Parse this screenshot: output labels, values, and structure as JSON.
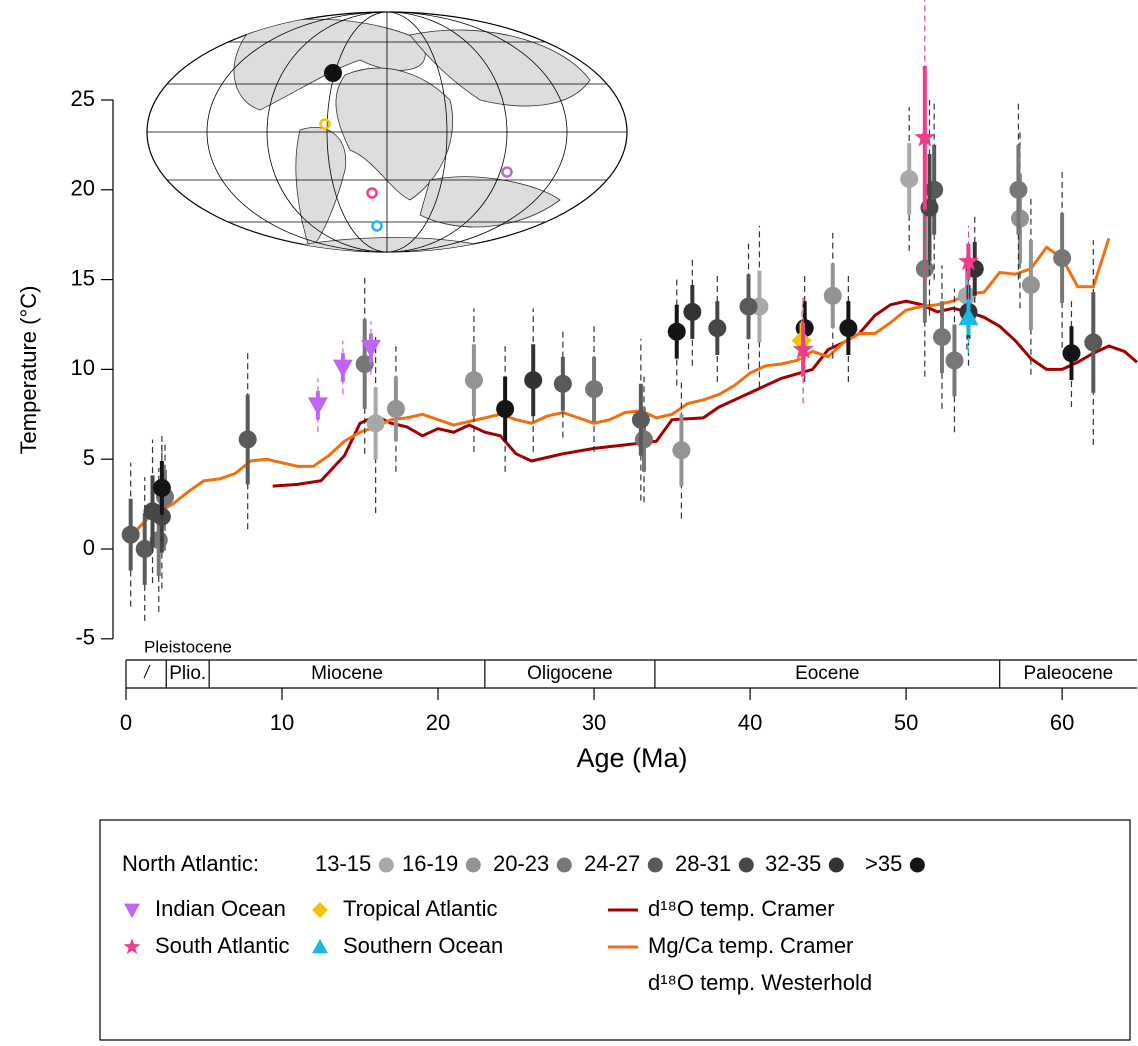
{
  "chart_data": {
    "type": "scatter",
    "xlabel": "Age (Ma)",
    "ylabel": "Temperature (°C)",
    "xlim": [
      0,
      64.8
    ],
    "ylim": [
      -5,
      30.5
    ],
    "xticks": [
      0,
      10,
      20,
      30,
      40,
      50,
      60
    ],
    "yticks": [
      -5,
      0,
      5,
      10,
      15,
      20,
      25
    ],
    "legend_prefix": "North Atlantic:",
    "epochs": [
      {
        "name": "Pleistocene",
        "start": 0,
        "end": 2.58,
        "label_above": true
      },
      {
        "name": "Plio.",
        "start": 2.58,
        "end": 5.33
      },
      {
        "name": "Miocene",
        "start": 5.33,
        "end": 23
      },
      {
        "name": "Oligocene",
        "start": 23,
        "end": 33.9
      },
      {
        "name": "Eocene",
        "start": 33.9,
        "end": 56
      },
      {
        "name": "Paleocene",
        "start": 56,
        "end": 66
      }
    ],
    "series": [
      {
        "name": "13-15",
        "group": "na",
        "color": "#a8a8a8",
        "marker": "circle",
        "x": [
          16.0,
          40.6,
          50.2,
          53.9
        ],
        "values": [
          7.0,
          13.5,
          20.6,
          14.1
        ],
        "errors": [
          2,
          2,
          2,
          1.5
        ],
        "errors_2sigma": [
          5,
          4.5,
          4,
          3
        ]
      },
      {
        "name": "16-19",
        "group": "na",
        "color": "#939393",
        "marker": "circle",
        "x": [
          17.3,
          22.3,
          35.6,
          45.3,
          57.3,
          58.0
        ],
        "values": [
          7.8,
          9.4,
          5.5,
          14.1,
          18.4,
          14.7
        ],
        "errors": [
          1.8,
          2,
          2,
          1.8,
          2.5,
          2.5
        ],
        "errors_2sigma": [
          3.5,
          4,
          3.8,
          3.5,
          5,
          5
        ]
      },
      {
        "name": "20-23",
        "group": "na",
        "color": "#777777",
        "marker": "circle",
        "x": [
          2.1,
          2.5,
          15.3,
          30.0,
          33.2,
          51.2,
          52.3,
          53.1,
          57.2,
          60.0
        ],
        "values": [
          0.5,
          2.9,
          10.3,
          8.9,
          6.1,
          15.6,
          11.8,
          10.5,
          20.0,
          16.2
        ],
        "errors": [
          2,
          1.5,
          2.5,
          1.8,
          1.8,
          3,
          2,
          2,
          2.5,
          2.5
        ],
        "errors_2sigma": [
          4,
          3,
          5,
          3.5,
          3.5,
          6,
          4,
          4,
          5,
          5
        ]
      },
      {
        "name": "24-27",
        "group": "na",
        "color": "#5a5a5a",
        "marker": "circle",
        "x": [
          0.3,
          1.2,
          7.8,
          28.0,
          33.0,
          39.9,
          51.8,
          62.0
        ],
        "values": [
          0.8,
          0.0,
          6.1,
          9.2,
          7.2,
          13.5,
          20.0,
          11.5
        ],
        "errors": [
          2,
          2,
          2.5,
          1.5,
          2,
          1.8,
          2.5,
          2.8
        ],
        "errors_2sigma": [
          4,
          4,
          5,
          3,
          4.5,
          3.5,
          5,
          5.7
        ]
      },
      {
        "name": "28-31",
        "group": "na",
        "color": "#474747",
        "marker": "circle",
        "x": [
          1.7,
          2.3,
          37.9,
          51.5
        ],
        "values": [
          2.1,
          1.8,
          12.3,
          19.0
        ],
        "errors": [
          2,
          2,
          1.5,
          3
        ],
        "errors_2sigma": [
          4,
          4,
          3,
          6
        ]
      },
      {
        "name": "32-35",
        "group": "na",
        "color": "#333333",
        "marker": "circle",
        "x": [
          26.1,
          36.3,
          54.0,
          54.4
        ],
        "values": [
          9.4,
          13.2,
          13.2,
          15.6
        ],
        "errors": [
          2,
          1.5,
          1.5,
          1.5
        ],
        "errors_2sigma": [
          4,
          3,
          3,
          3
        ]
      },
      {
        "name": ">35",
        "group": "na",
        "color": "#151515",
        "marker": "circle",
        "x": [
          2.3,
          24.3,
          35.3,
          43.5,
          46.3,
          60.6
        ],
        "values": [
          3.4,
          7.8,
          12.1,
          12.3,
          12.3,
          10.9
        ],
        "errors": [
          1.5,
          1.8,
          1.5,
          1.5,
          1.5,
          1.5
        ],
        "errors_2sigma": [
          3,
          3.5,
          3,
          3,
          3,
          3
        ]
      },
      {
        "name": "Indian Ocean",
        "group": "other",
        "color": "#c264f5",
        "marker": "triangle-down",
        "x": [
          12.3,
          13.9,
          15.7
        ],
        "values": [
          8.0,
          10.1,
          11.2
        ],
        "errors": [
          0.8,
          0.8,
          0.8
        ],
        "errors_2sigma": [
          1.5,
          1.5,
          1.5
        ]
      },
      {
        "name": "Tropical Atlantic",
        "group": "other",
        "color": "#f5c400",
        "marker": "diamond",
        "x": [
          43.3
        ],
        "values": [
          11.6
        ],
        "errors": [
          1
        ],
        "errors_2sigma": [
          2
        ]
      },
      {
        "name": "South Atlantic",
        "group": "other",
        "color": "#f03c8c",
        "marker": "star",
        "x": [
          43.4,
          51.2,
          54.0
        ],
        "values": [
          11.1,
          22.9,
          16.0
        ],
        "errors": [
          1.5,
          4,
          1
        ],
        "errors_2sigma": [
          3,
          8,
          2
        ]
      },
      {
        "name": "Southern Ocean",
        "group": "other",
        "color": "#1ab8e8",
        "marker": "triangle-up",
        "x": [
          54.0
        ],
        "values": [
          12.9
        ],
        "errors": [
          1
        ],
        "errors_2sigma": [
          2
        ]
      }
    ],
    "lines": [
      {
        "name": "d¹⁸O temp. Cramer",
        "color": "#a00000",
        "x": [
          9.4,
          11,
          12.5,
          14,
          15,
          16,
          17,
          18,
          19,
          20,
          21,
          22,
          23,
          24,
          25,
          26,
          27,
          28,
          30,
          32,
          34,
          35,
          37,
          38,
          40,
          42,
          44,
          45,
          46,
          47,
          48,
          49,
          50,
          51,
          52,
          53,
          54,
          55,
          56,
          57,
          58,
          59,
          60,
          61,
          62,
          63,
          64,
          64.8
        ],
        "values": [
          3.5,
          3.6,
          3.8,
          5.2,
          7,
          7.4,
          7.0,
          6.8,
          6.3,
          6.7,
          6.5,
          6.9,
          6.5,
          6.3,
          5.3,
          4.9,
          5.1,
          5.3,
          5.6,
          5.8,
          6.0,
          7.2,
          7.3,
          7.9,
          8.7,
          9.5,
          10.0,
          11.1,
          11.5,
          12.0,
          13,
          13.6,
          13.8,
          13.6,
          13.2,
          13.4,
          13.2,
          12.9,
          12.4,
          11.6,
          10.6,
          10.0,
          10.0,
          10.4,
          10.9,
          11.3,
          11.0,
          10.4
        ]
      },
      {
        "name": "Mg/Ca temp. Cramer",
        "color": "#f07010",
        "x": [
          0.5,
          1.5,
          3,
          4,
          5,
          6,
          7,
          8,
          9,
          10,
          11,
          12,
          13,
          14,
          15,
          16,
          17,
          18,
          19,
          20,
          21,
          22,
          23,
          24,
          25,
          26,
          27,
          28,
          29,
          30,
          31,
          32,
          33,
          34,
          35,
          36,
          37,
          38,
          39,
          40,
          41,
          42,
          43,
          44,
          45,
          46,
          47,
          48,
          49,
          50,
          51,
          52,
          53,
          54,
          55,
          56,
          57,
          58,
          59,
          60,
          61,
          62,
          63
        ],
        "values": [
          0.9,
          1.8,
          2.5,
          3.2,
          3.8,
          3.9,
          4.2,
          4.9,
          5.0,
          4.8,
          4.6,
          4.6,
          5.2,
          6.0,
          6.5,
          6.8,
          7.2,
          7.3,
          7.5,
          7.2,
          6.9,
          7.1,
          7.3,
          7.5,
          7.2,
          7.0,
          7.4,
          7.6,
          7.3,
          7.0,
          7.2,
          7.6,
          7.7,
          7.3,
          7.5,
          8.1,
          8.3,
          8.6,
          9.1,
          9.8,
          10.2,
          10.3,
          10.5,
          11.0,
          10.7,
          11.5,
          12.0,
          12.0,
          12.6,
          13.3,
          13.5,
          13.6,
          13.8,
          14.2,
          14.3,
          15.4,
          15.3,
          15.6,
          16.8,
          16.2,
          14.6,
          14.6,
          17.3
        ]
      },
      {
        "name": "d¹⁸O temp. Westerhold",
        "color": "#000000",
        "x": [],
        "values": []
      }
    ]
  }
}
